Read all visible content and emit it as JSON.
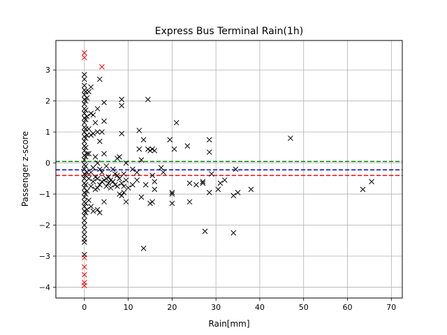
{
  "chart_data": {
    "type": "scatter",
    "title": "Express Bus Terminal Rain(1h)",
    "xlabel": "Rain[mm]",
    "ylabel": "Passenger z-score",
    "xlim": [
      -6.5,
      72.5
    ],
    "ylim": [
      -4.35,
      3.95
    ],
    "xticks": [
      0,
      10,
      20,
      30,
      40,
      50,
      60,
      70
    ],
    "yticks": [
      -4,
      -3,
      -2,
      -1,
      0,
      1,
      2,
      3
    ],
    "grid": true,
    "marker": "x",
    "colors": {
      "points": "#000000",
      "outliers": "#ff0000",
      "line_green": "#008000",
      "line_blue": "#0000cd",
      "line_red": "#ff0000",
      "grid": "#b0b0b0"
    },
    "reference_lines": [
      {
        "y": 0.05,
        "color": "#008000",
        "style": "dashed"
      },
      {
        "y": -0.22,
        "color": "#0000cd",
        "style": "dashed"
      },
      {
        "y": -0.4,
        "color": "#ff0000",
        "style": "dashed"
      }
    ],
    "series": [
      {
        "color": "#000000",
        "points": [
          [
            0.0,
            2.85
          ],
          [
            0.0,
            2.7
          ],
          [
            0.0,
            2.5
          ],
          [
            0.0,
            2.35
          ],
          [
            0.0,
            2.2
          ],
          [
            0.0,
            2.05
          ],
          [
            0.0,
            1.9
          ],
          [
            0.0,
            1.75
          ],
          [
            0.0,
            1.6
          ],
          [
            0.0,
            1.45
          ],
          [
            0.0,
            1.3
          ],
          [
            0.0,
            1.15
          ],
          [
            0.0,
            1.0
          ],
          [
            0.0,
            0.85
          ],
          [
            0.0,
            0.7
          ],
          [
            0.0,
            0.55
          ],
          [
            0.0,
            0.4
          ],
          [
            0.0,
            0.25
          ],
          [
            0.0,
            0.1
          ],
          [
            0.0,
            -0.05
          ],
          [
            0.0,
            -0.2
          ],
          [
            0.0,
            -0.35
          ],
          [
            0.0,
            -0.5
          ],
          [
            0.0,
            -0.65
          ],
          [
            0.0,
            -0.8
          ],
          [
            0.0,
            -0.95
          ],
          [
            0.0,
            -1.1
          ],
          [
            0.0,
            -1.25
          ],
          [
            0.0,
            -1.4
          ],
          [
            0.0,
            -1.55
          ],
          [
            0.0,
            -1.7
          ],
          [
            0.0,
            -1.85
          ],
          [
            0.0,
            -2.0
          ],
          [
            0.0,
            -2.15
          ],
          [
            0.0,
            -2.3
          ],
          [
            0.0,
            -2.45
          ],
          [
            0.0,
            -2.55
          ],
          [
            0.0,
            -2.95
          ],
          [
            0.3,
            2.3
          ],
          [
            0.3,
            2.0
          ],
          [
            0.3,
            1.7
          ],
          [
            0.3,
            1.4
          ],
          [
            0.3,
            1.1
          ],
          [
            0.3,
            0.8
          ],
          [
            0.3,
            0.5
          ],
          [
            0.3,
            0.2
          ],
          [
            0.3,
            -0.1
          ],
          [
            0.3,
            -0.4
          ],
          [
            0.3,
            -0.7
          ],
          [
            0.3,
            -1.0
          ],
          [
            0.3,
            -1.3
          ],
          [
            0.3,
            -1.6
          ],
          [
            0.6,
            2.1
          ],
          [
            0.6,
            1.5
          ],
          [
            0.6,
            0.9
          ],
          [
            0.6,
            0.3
          ],
          [
            0.6,
            -0.3
          ],
          [
            0.6,
            -0.9
          ],
          [
            0.6,
            -1.5
          ],
          [
            1.0,
            2.3
          ],
          [
            1.0,
            1.1
          ],
          [
            1.0,
            0.3
          ],
          [
            1.0,
            -0.5
          ],
          [
            1.0,
            -1.2
          ],
          [
            1.5,
            2.45
          ],
          [
            1.5,
            1.6
          ],
          [
            1.5,
            0.9
          ],
          [
            1.5,
            -0.3
          ],
          [
            1.5,
            -0.75
          ],
          [
            1.5,
            -1.4
          ],
          [
            2.0,
            1.55
          ],
          [
            2.0,
            0.95
          ],
          [
            2.0,
            -0.15
          ],
          [
            2.0,
            -0.6
          ],
          [
            2.0,
            -1.55
          ],
          [
            2.5,
            1.3
          ],
          [
            2.5,
            0.2
          ],
          [
            2.5,
            -0.45
          ],
          [
            2.5,
            -0.85
          ],
          [
            3.0,
            1.75
          ],
          [
            3.0,
            1.0
          ],
          [
            3.0,
            0.0
          ],
          [
            3.0,
            -0.5
          ],
          [
            3.0,
            -0.8
          ],
          [
            3.0,
            -1.5
          ],
          [
            3.5,
            2.7
          ],
          [
            3.5,
            0.7
          ],
          [
            3.5,
            -0.2
          ],
          [
            3.5,
            -0.7
          ],
          [
            3.5,
            -1.6
          ],
          [
            4.0,
            1.0
          ],
          [
            4.0,
            -0.3
          ],
          [
            4.0,
            -0.6
          ],
          [
            4.5,
            1.95
          ],
          [
            4.5,
            1.35
          ],
          [
            4.5,
            0.3
          ],
          [
            4.5,
            -0.55
          ],
          [
            4.5,
            -1.25
          ],
          [
            5.0,
            -0.1
          ],
          [
            5.0,
            -0.5
          ],
          [
            5.0,
            -0.75
          ],
          [
            5.5,
            -0.45
          ],
          [
            5.5,
            -0.65
          ],
          [
            6.0,
            -0.55
          ],
          [
            6.0,
            -0.8
          ],
          [
            6.5,
            -0.2
          ],
          [
            6.5,
            -0.6
          ],
          [
            7.0,
            -0.35
          ],
          [
            7.0,
            -0.7
          ],
          [
            7.5,
            0.15
          ],
          [
            7.5,
            -0.4
          ],
          [
            7.5,
            -0.75
          ],
          [
            8.0,
            0.2
          ],
          [
            8.0,
            -0.5
          ],
          [
            8.0,
            -1.0
          ],
          [
            8.5,
            2.05
          ],
          [
            8.5,
            1.85
          ],
          [
            8.5,
            0.95
          ],
          [
            8.5,
            -0.65
          ],
          [
            8.5,
            -1.05
          ],
          [
            9.0,
            -0.35
          ],
          [
            9.0,
            -0.75
          ],
          [
            9.0,
            -0.95
          ],
          [
            9.5,
            0.0
          ],
          [
            9.5,
            -0.55
          ],
          [
            9.5,
            -1.25
          ],
          [
            10.0,
            -0.8
          ],
          [
            11.0,
            -0.2
          ],
          [
            11.0,
            -0.7
          ],
          [
            12.0,
            -0.3
          ],
          [
            12.0,
            -0.55
          ],
          [
            12.5,
            1.05
          ],
          [
            12.5,
            0.45
          ],
          [
            13.0,
            0.1
          ],
          [
            13.0,
            -1.1
          ],
          [
            13.5,
            0.75
          ],
          [
            13.5,
            -2.75
          ],
          [
            14.0,
            -0.7
          ],
          [
            14.5,
            2.05
          ],
          [
            14.5,
            0.45
          ],
          [
            15.0,
            0.4
          ],
          [
            15.0,
            -1.3
          ],
          [
            15.5,
            0.45
          ],
          [
            15.5,
            -0.4
          ],
          [
            15.5,
            -1.25
          ],
          [
            16.0,
            0.4
          ],
          [
            16.0,
            -0.6
          ],
          [
            16.0,
            -0.85
          ],
          [
            17.5,
            -0.15
          ],
          [
            18.0,
            -0.3
          ],
          [
            19.5,
            0.75
          ],
          [
            20.0,
            -0.95
          ],
          [
            20.0,
            -1.0
          ],
          [
            20.0,
            -1.3
          ],
          [
            20.5,
            0.45
          ],
          [
            21.0,
            1.3
          ],
          [
            23.5,
            0.55
          ],
          [
            24.0,
            -0.65
          ],
          [
            24.0,
            -1.25
          ],
          [
            25.5,
            -0.7
          ],
          [
            27.0,
            -0.6
          ],
          [
            27.0,
            -0.65
          ],
          [
            27.5,
            -2.2
          ],
          [
            28.5,
            0.75
          ],
          [
            28.5,
            0.35
          ],
          [
            28.5,
            -0.95
          ],
          [
            29.0,
            -0.35
          ],
          [
            30.5,
            -0.85
          ],
          [
            31.0,
            -0.65
          ],
          [
            32.0,
            -0.55
          ],
          [
            34.0,
            -1.05
          ],
          [
            34.0,
            -2.25
          ],
          [
            34.5,
            -0.2
          ],
          [
            35.0,
            -0.95
          ],
          [
            38.0,
            -0.85
          ],
          [
            47.0,
            0.8
          ],
          [
            63.5,
            -0.85
          ],
          [
            65.5,
            -0.6
          ]
        ]
      },
      {
        "color": "#ff0000",
        "points": [
          [
            0.0,
            3.55
          ],
          [
            0.0,
            3.4
          ],
          [
            4.0,
            3.1
          ],
          [
            0.0,
            -3.05
          ],
          [
            0.0,
            -3.35
          ],
          [
            0.0,
            -3.6
          ],
          [
            0.0,
            -3.85
          ],
          [
            0.0,
            -3.95
          ]
        ]
      }
    ]
  }
}
